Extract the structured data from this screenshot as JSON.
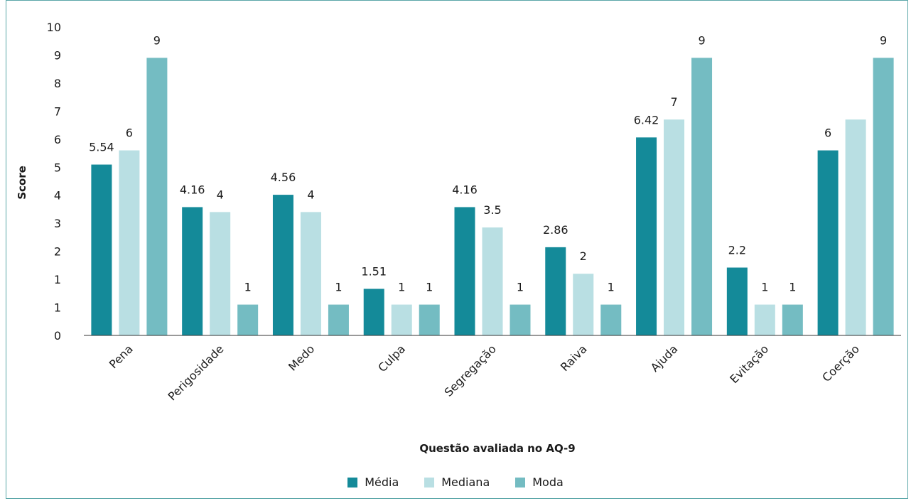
{
  "chart_data": {
    "type": "bar",
    "categories": [
      "Pena",
      "Perigosidade",
      "Medo",
      "Culpa",
      "Segregação",
      "Raiva",
      "Ajuda",
      "Evitação",
      "Coerção"
    ],
    "series": [
      {
        "name": "Média",
        "values": [
          5.54,
          4.16,
          4.56,
          1.51,
          4.16,
          2.86,
          6.42,
          2.2,
          6
        ],
        "color": "#148a99",
        "labels": [
          "5.54",
          "4.16",
          "4.56",
          "1.51",
          "4.16",
          "2.86",
          "6.42",
          "2.2",
          "6"
        ]
      },
      {
        "name": "Mediana",
        "values": [
          6,
          4,
          4,
          1,
          3.5,
          2,
          7,
          1,
          7
        ],
        "color": "#b9dfe3",
        "labels": [
          "6",
          "4",
          "4",
          "1",
          "3.5",
          "2",
          "7",
          "1",
          ""
        ]
      },
      {
        "name": "Moda",
        "values": [
          9,
          1,
          1,
          1,
          1,
          1,
          9,
          1,
          9
        ],
        "color": "#74bcc2",
        "labels": [
          "9",
          "1",
          "1",
          "1",
          "1",
          "1",
          "9",
          "1",
          "9"
        ]
      }
    ],
    "yticks": [
      "0",
      "1",
      "1",
      "2",
      "3",
      "4",
      "5",
      "6",
      "7",
      "8",
      "9",
      "10"
    ],
    "xlabel": "Questão avaliada no AQ-9",
    "ylabel": "Score",
    "ylim": [
      0,
      10
    ],
    "grid": false,
    "legend_position": "bottom"
  }
}
